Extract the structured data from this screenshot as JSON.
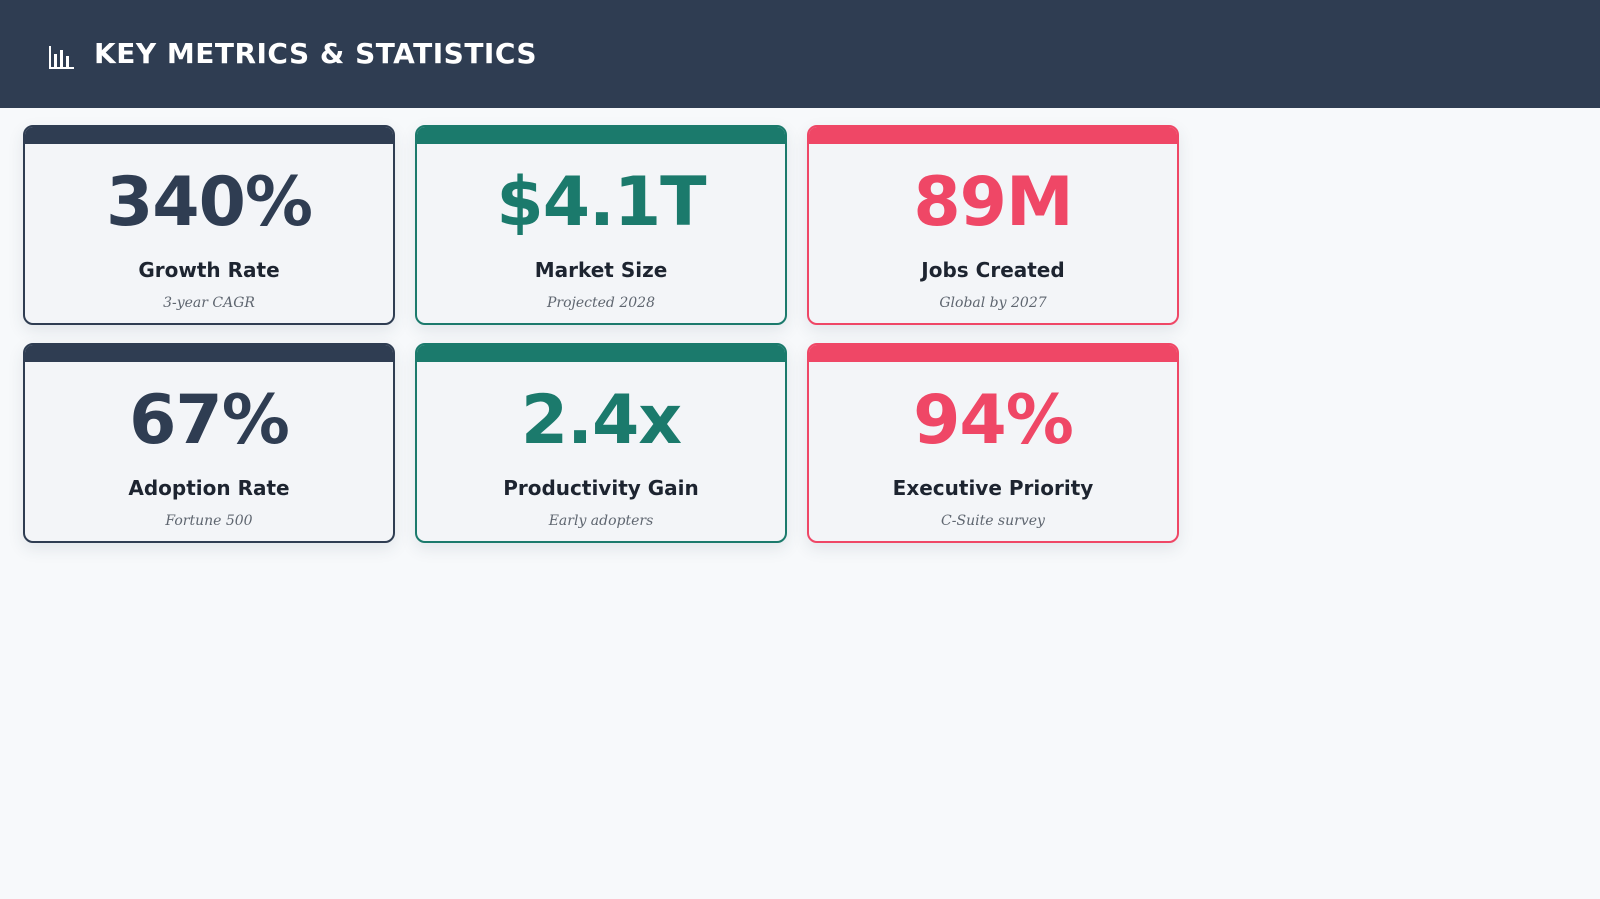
{
  "header": {
    "title": "KEY METRICS & STATISTICS",
    "icon": "bar-chart-icon",
    "background": "#2f3d52"
  },
  "colors": {
    "dark": "#2f3d52",
    "teal": "#1b7a6c",
    "red": "#ef4766"
  },
  "metrics": [
    {
      "value": "340%",
      "label": "Growth Rate",
      "sub": "3-year CAGR",
      "theme": "dark"
    },
    {
      "value": "$4.1T",
      "label": "Market Size",
      "sub": "Projected 2028",
      "theme": "teal"
    },
    {
      "value": "89M",
      "label": "Jobs Created",
      "sub": "Global by 2027",
      "theme": "red"
    },
    {
      "value": "67%",
      "label": "Adoption Rate",
      "sub": "Fortune 500",
      "theme": "dark"
    },
    {
      "value": "2.4x",
      "label": "Productivity Gain",
      "sub": "Early adopters",
      "theme": "teal"
    },
    {
      "value": "94%",
      "label": "Executive Priority",
      "sub": "C-Suite survey",
      "theme": "red"
    }
  ]
}
